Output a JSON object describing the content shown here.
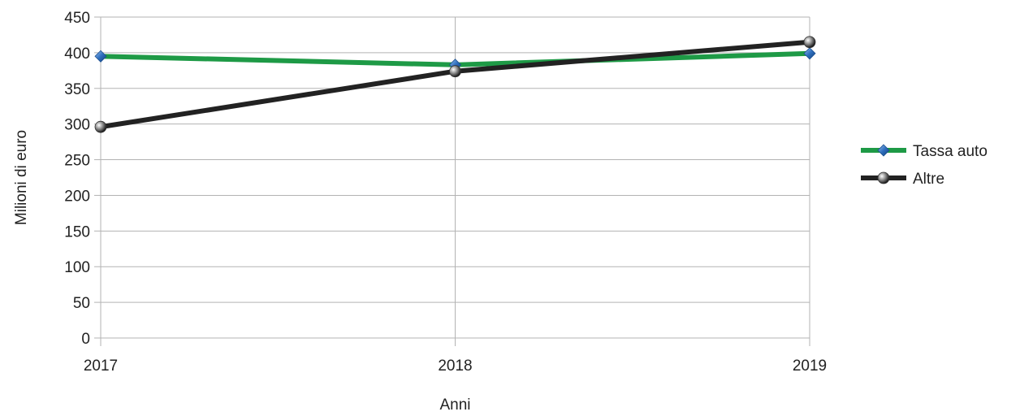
{
  "chart_data": {
    "type": "line",
    "title": "",
    "xlabel": "Anni",
    "ylabel": "Milioni di euro",
    "categories": [
      "2017",
      "2018",
      "2019"
    ],
    "ylim": [
      0,
      450
    ],
    "yticks": [
      "0",
      "50",
      "100",
      "150",
      "200",
      "250",
      "300",
      "350",
      "400",
      "450"
    ],
    "grid": "horizontal",
    "legend_position": "right",
    "series": [
      {
        "name": "Tassa auto",
        "values": [
          395,
          383,
          399
        ],
        "color": "#1e9a46",
        "marker": "diamond",
        "marker_color": "#2f6fbf"
      },
      {
        "name": "Altre",
        "values": [
          296,
          374,
          415
        ],
        "color": "#222222",
        "marker": "circle",
        "marker_color": "#8a8a8a"
      }
    ]
  }
}
